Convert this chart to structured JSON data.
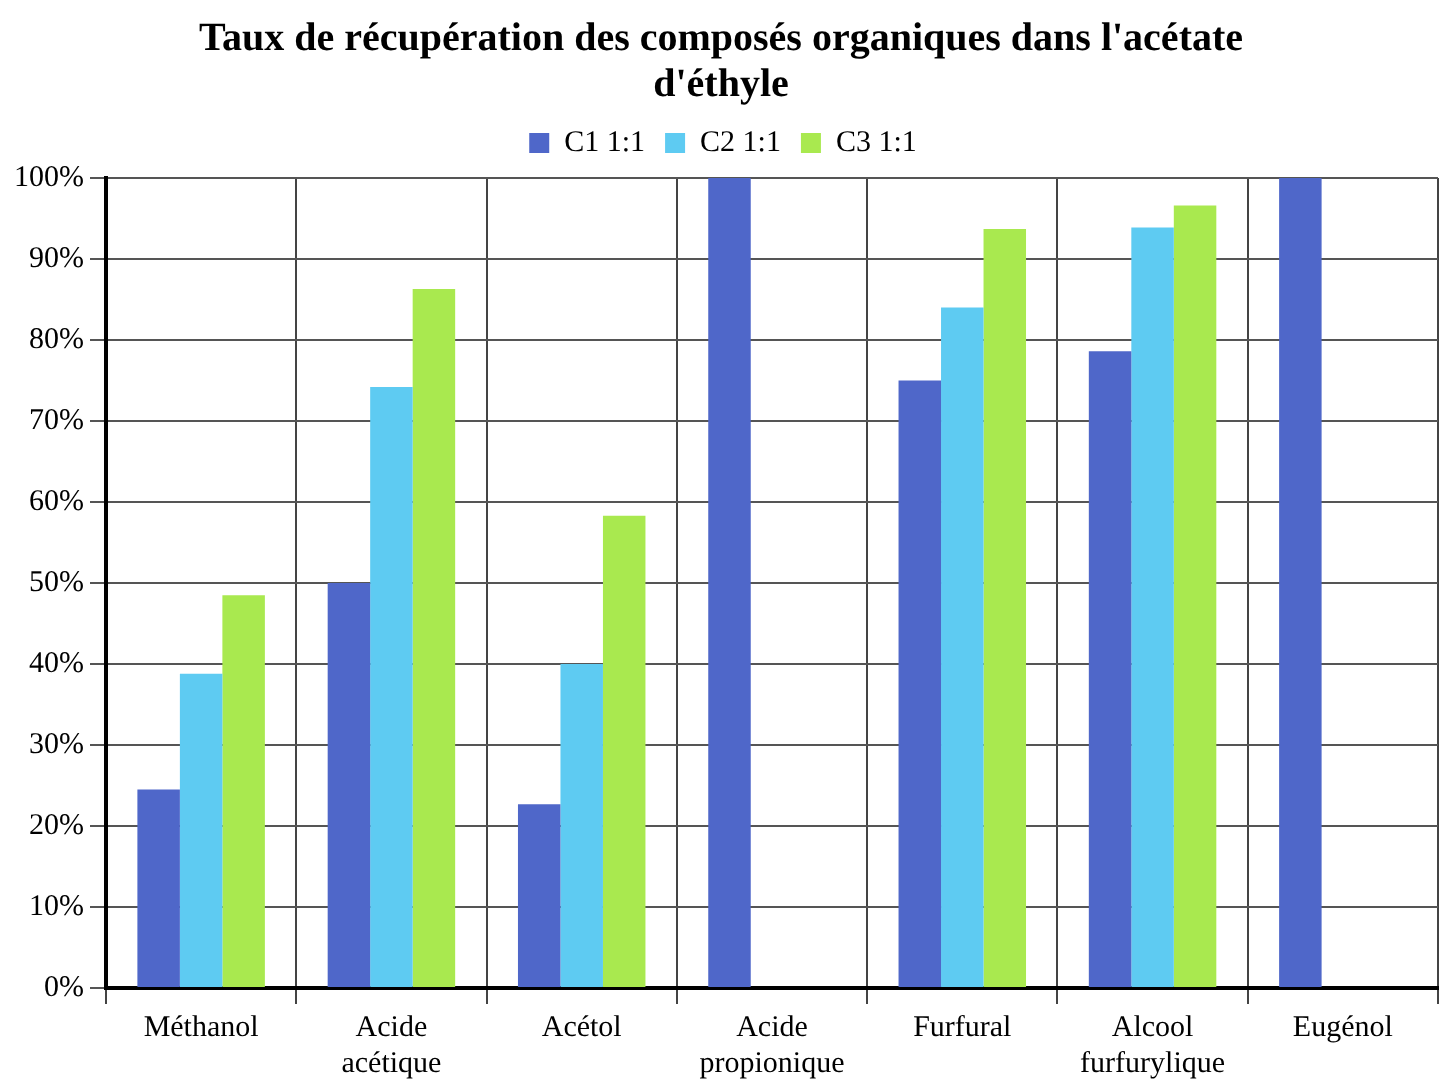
{
  "chart_data": {
    "type": "bar",
    "title": "Taux de récupération des composés organiques dans l'acétate d'éthyle",
    "categories": [
      "Méthanol",
      "Acide acétique",
      "Acétol",
      "Acide propionique",
      "Furfural",
      "Alcool furfurylique",
      "Eugénol"
    ],
    "series": [
      {
        "name": "C1 1:1",
        "color": "#4f67c9",
        "values": [
          24.5,
          50,
          22.7,
          100,
          75,
          78.6,
          100
        ]
      },
      {
        "name": "C2 1:1",
        "color": "#5ecbf2",
        "values": [
          38.8,
          74.2,
          40,
          null,
          84,
          93.9,
          null
        ]
      },
      {
        "name": "C3 1:1",
        "color": "#a9e94f",
        "values": [
          48.5,
          86.3,
          58.3,
          null,
          93.7,
          96.6,
          null
        ]
      }
    ],
    "ylim": [
      0,
      100
    ],
    "yticks": [
      {
        "value": 0,
        "label": "0%"
      },
      {
        "value": 10,
        "label": "10%"
      },
      {
        "value": 20,
        "label": "20%"
      },
      {
        "value": 30,
        "label": "30%"
      },
      {
        "value": 40,
        "label": "40%"
      },
      {
        "value": 50,
        "label": "50%"
      },
      {
        "value": 60,
        "label": "60%"
      },
      {
        "value": 70,
        "label": "70%"
      },
      {
        "value": 80,
        "label": "80%"
      },
      {
        "value": 90,
        "label": "90%"
      },
      {
        "value": 100,
        "label": "100%"
      }
    ],
    "grid": true,
    "legend": "top"
  }
}
